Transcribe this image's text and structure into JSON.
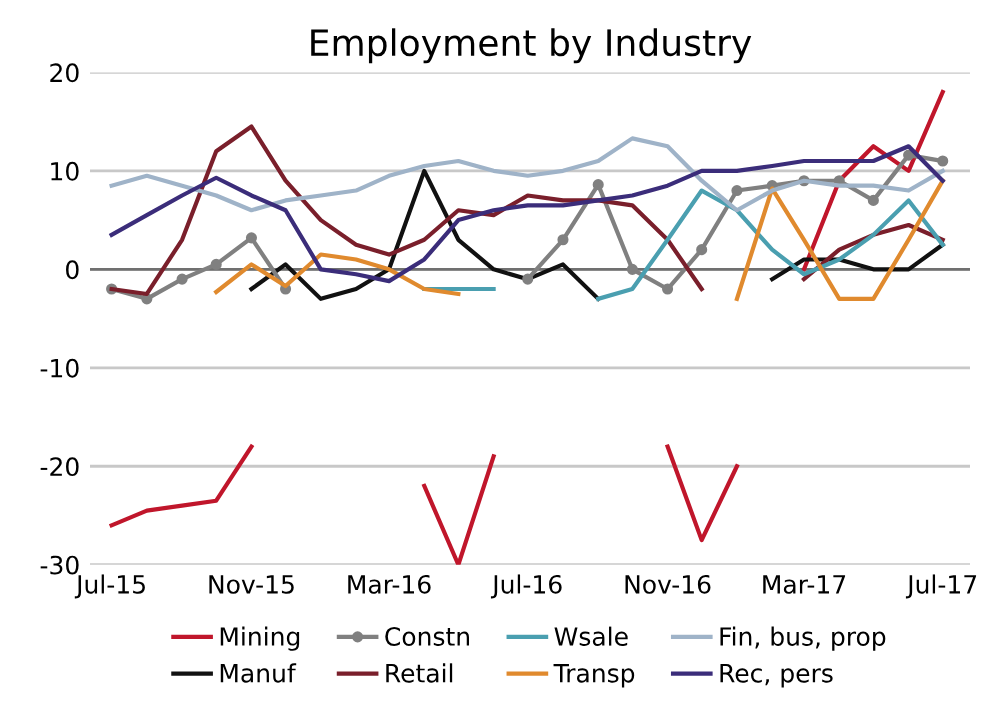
{
  "chart_data": {
    "type": "line",
    "title": "Employment by Industry",
    "x": [
      "2015-07",
      "2015-08",
      "2015-09",
      "2015-10",
      "2015-11",
      "2015-12",
      "2016-01",
      "2016-02",
      "2016-03",
      "2016-04",
      "2016-05",
      "2016-06",
      "2016-07",
      "2016-08",
      "2016-09",
      "2016-10",
      "2016-11",
      "2016-12",
      "2017-01",
      "2017-02",
      "2017-03",
      "2017-04",
      "2017-05",
      "2017-06",
      "2017-07"
    ],
    "series": [
      {
        "name": "Mining",
        "color": "#c0162b",
        "values": [
          -26,
          -24.5,
          -24,
          -23.5,
          -18,
          null,
          null,
          null,
          null,
          -22,
          -30,
          -19,
          null,
          null,
          null,
          null,
          -18,
          -27.5,
          -20,
          null,
          0,
          9,
          12.5,
          10,
          18
        ]
      },
      {
        "name": "Manuf",
        "color": "#111111",
        "values": [
          null,
          null,
          null,
          null,
          -2,
          0.5,
          -3,
          -2,
          0,
          10,
          3,
          0,
          -1,
          0.5,
          -3,
          null,
          null,
          null,
          null,
          -1,
          1,
          1,
          0,
          0,
          2.5
        ]
      },
      {
        "name": "Constn",
        "color": "#808080",
        "marker": "circle",
        "values": [
          -2,
          -3,
          -1,
          0.5,
          3.2,
          -2,
          null,
          null,
          null,
          null,
          null,
          null,
          -1,
          3,
          8.6,
          0,
          -2,
          2,
          8,
          8.5,
          9,
          9,
          7,
          11.6,
          11
        ]
      },
      {
        "name": "Retail",
        "color": "#7a1f2b",
        "values": [
          -2,
          -2.5,
          3,
          12,
          14.5,
          9,
          5,
          2.5,
          1.5,
          3,
          6,
          5.5,
          7.5,
          7,
          7,
          6.5,
          3,
          -2,
          null,
          null,
          -1,
          2,
          3.5,
          4.5,
          3
        ]
      },
      {
        "name": "Wsale",
        "color": "#4a9fb0",
        "values": [
          null,
          null,
          null,
          null,
          null,
          null,
          null,
          null,
          null,
          -2,
          -2,
          -2,
          null,
          null,
          -3,
          -2,
          3,
          8,
          6,
          2,
          -0.5,
          1,
          3.5,
          7,
          2.5
        ]
      },
      {
        "name": "Transp",
        "color": "#e08a2e",
        "values": [
          null,
          null,
          null,
          -2.3,
          0.5,
          -1.7,
          1.5,
          1,
          0,
          -2,
          -2.5,
          null,
          null,
          null,
          null,
          null,
          null,
          null,
          -3,
          8.2,
          3,
          -3,
          -3,
          3,
          9
        ]
      },
      {
        "name": "Fin, bus, prop",
        "color": "#9fb3c8",
        "values": [
          8.5,
          9.5,
          8.5,
          7.5,
          6,
          7,
          7.5,
          8,
          9.5,
          10.5,
          11,
          10,
          9.5,
          10,
          11,
          13.3,
          12.5,
          9,
          6,
          8,
          9,
          8.5,
          8.5,
          8,
          10
        ]
      },
      {
        "name": "Rec, pers",
        "color": "#3b2d7a",
        "values": [
          3.5,
          5.5,
          7.5,
          9.3,
          7.5,
          6,
          0,
          -0.5,
          -1.2,
          1,
          5,
          6,
          6.5,
          6.5,
          7,
          7.5,
          8.5,
          10,
          10,
          10.5,
          11,
          11,
          11,
          12.5,
          9
        ]
      }
    ],
    "xlim": [
      "2015-06-12",
      "2017-07-25"
    ],
    "xticks": [
      {
        "value": "2015-07",
        "label": "Jul-15"
      },
      {
        "value": "2015-11",
        "label": "Nov-15"
      },
      {
        "value": "2016-03",
        "label": "Mar-16"
      },
      {
        "value": "2016-07",
        "label": "Jul-16"
      },
      {
        "value": "2016-11",
        "label": "Nov-16"
      },
      {
        "value": "2017-03",
        "label": "Mar-17"
      },
      {
        "value": "2017-07",
        "label": "Jul-17"
      }
    ],
    "ylim": [
      -30,
      20
    ],
    "yticks": [
      -30,
      -20,
      -10,
      0,
      10,
      20
    ],
    "grid": "y",
    "legend": "bottom",
    "line_style": "solid"
  }
}
